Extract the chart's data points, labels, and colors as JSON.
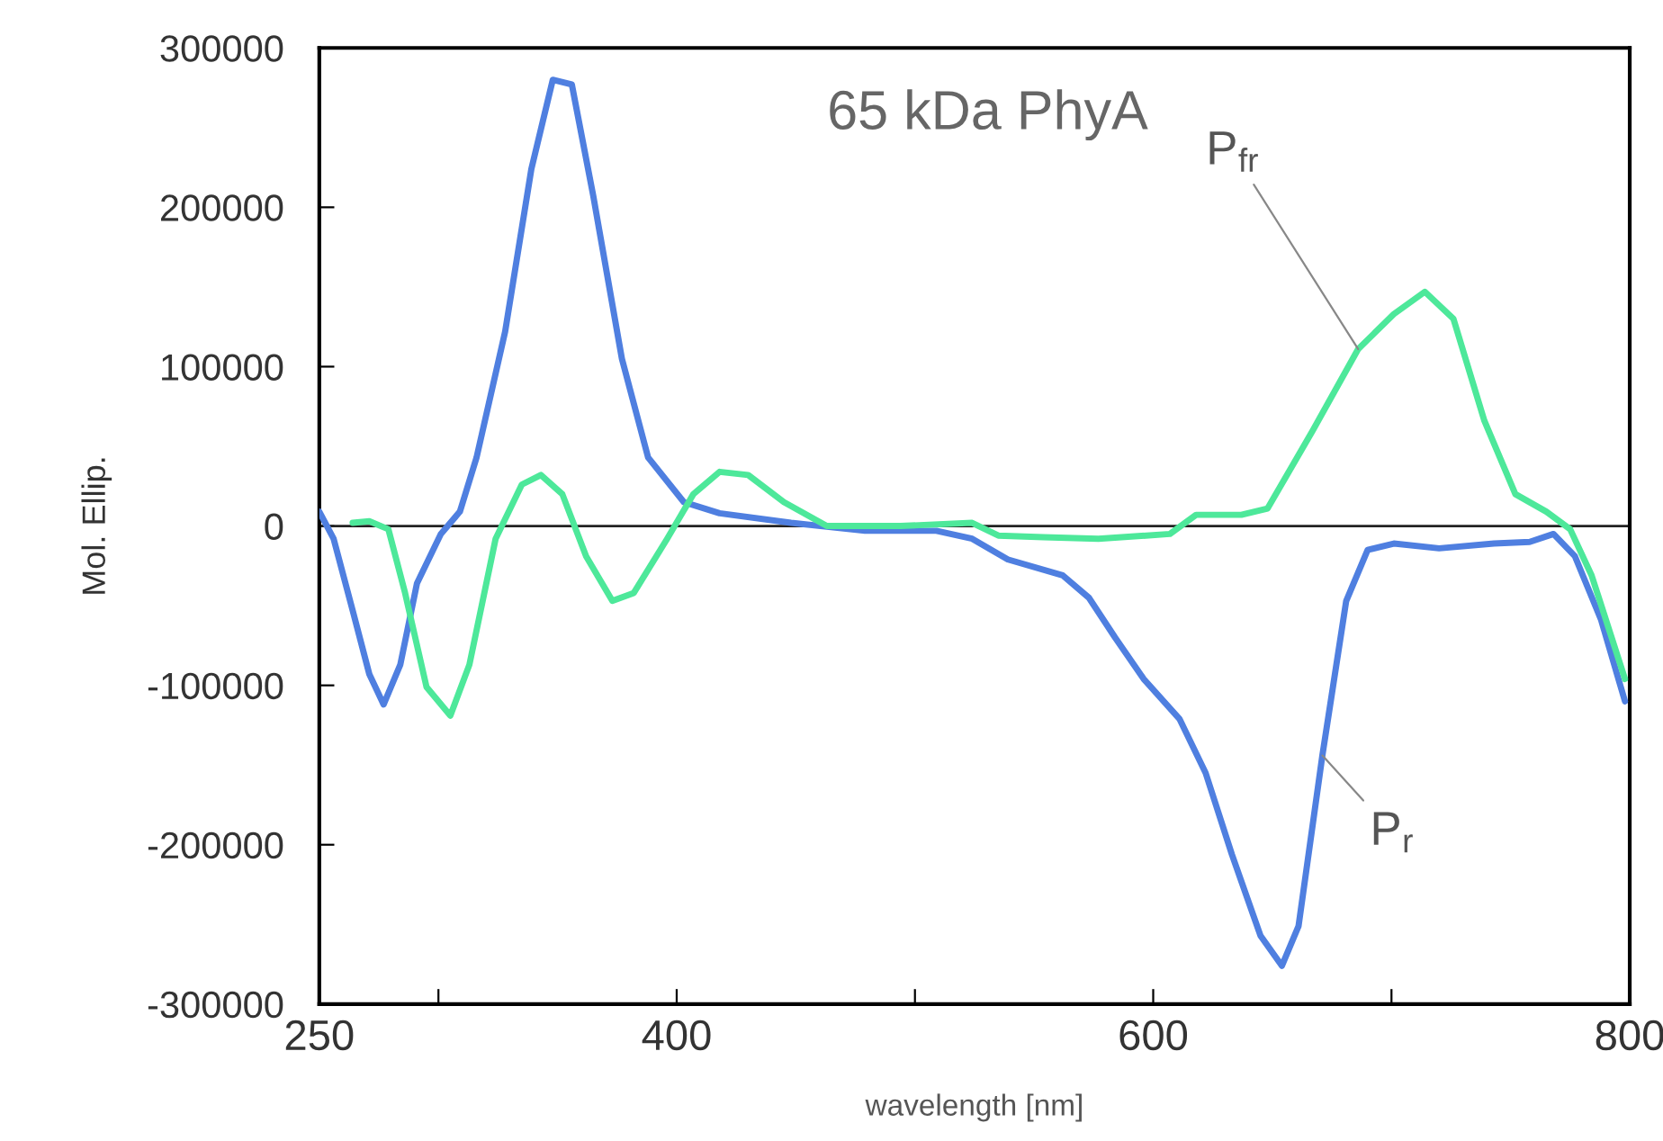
{
  "chart_data": {
    "type": "line",
    "title": "65 kDa PhyA",
    "xlabel": "wavelength [nm]",
    "ylabel": "Mol. Ellip.",
    "xlim": [
      250,
      800
    ],
    "xticks": [
      250,
      {
        "value": 300,
        "label": null
      },
      400,
      {
        "value": 500,
        "label": null
      },
      600,
      {
        "value": 700,
        "label": null
      },
      800
    ],
    "ylim": [
      -300000,
      300000
    ],
    "yticks": [
      -300000,
      -200000,
      -100000,
      0,
      100000,
      200000,
      300000
    ],
    "grid": false,
    "legend": false,
    "line_style": "solid",
    "marker": "none",
    "ref_lines": [
      {
        "axis": "y",
        "value": 0,
        "color": "#222222"
      }
    ],
    "series": [
      {
        "name": "P$_{r}$",
        "color": "#4f7fe0",
        "x": [
          250,
          256,
          264,
          271,
          277,
          284,
          291,
          301,
          309,
          316,
          328,
          339,
          348,
          356,
          365,
          377,
          388,
          403,
          418,
          448,
          479,
          509,
          524,
          539,
          562,
          573,
          584,
          596,
          611,
          622,
          633,
          645,
          654,
          661,
          671,
          681,
          690,
          701,
          720,
          743,
          758,
          768,
          777,
          788,
          798
        ],
        "values": [
          9000,
          -8000,
          -53000,
          -93000,
          -112000,
          -87000,
          -36000,
          -5000,
          9000,
          43000,
          122000,
          224000,
          280000,
          277000,
          207000,
          105000,
          43000,
          15000,
          8000,
          2000,
          -3000,
          -3000,
          -8000,
          -21000,
          -31000,
          -45000,
          -70000,
          -96000,
          -121000,
          -155000,
          -206000,
          -257000,
          -276000,
          -251000,
          -144000,
          -47000,
          -15000,
          -11000,
          -14000,
          -11000,
          -10000,
          -5000,
          -19000,
          -59000,
          -110000
        ]
      },
      {
        "name": "P$_{fr}$",
        "color": "#4de89a",
        "x": [
          264,
          271,
          279,
          286,
          295,
          305,
          313,
          324,
          335,
          343,
          352,
          362,
          373,
          382,
          396,
          407,
          418,
          430,
          445,
          463,
          494,
          524,
          535,
          554,
          577,
          607,
          618,
          637,
          648,
          667,
          686,
          701,
          714,
          726,
          739,
          752,
          765,
          775,
          784,
          798
        ],
        "values": [
          2000,
          3000,
          -2000,
          -42000,
          -101000,
          -119000,
          -87000,
          -8000,
          26000,
          32000,
          20000,
          -19000,
          -47000,
          -42000,
          -8000,
          20000,
          34000,
          32000,
          15000,
          0,
          0,
          2000,
          -6000,
          -7000,
          -8000,
          -5000,
          7000,
          7000,
          11000,
          60000,
          111000,
          133000,
          147000,
          130000,
          66000,
          20000,
          9000,
          -2000,
          -31000,
          -96000
        ]
      }
    ]
  }
}
